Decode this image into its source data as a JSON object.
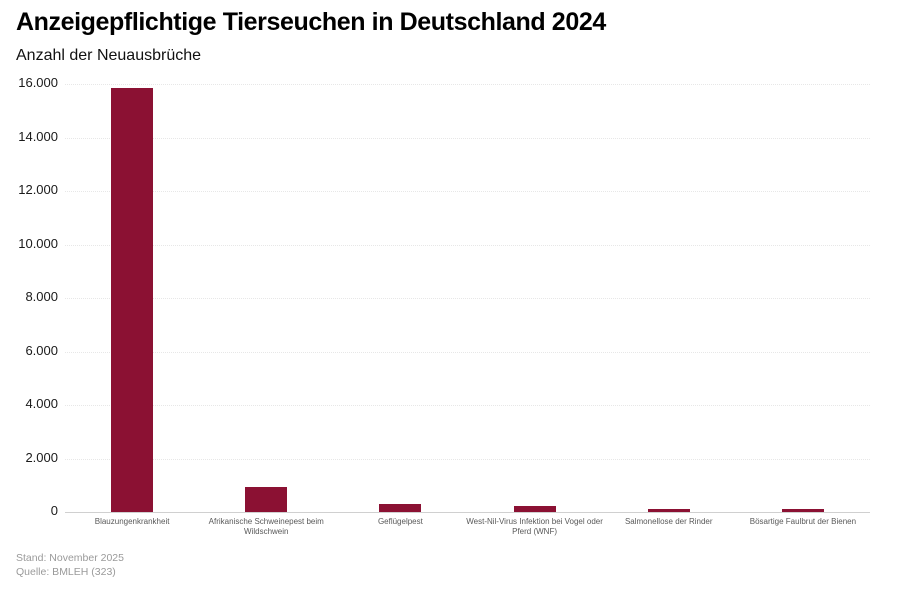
{
  "header": {
    "title": "Anzeigepflichtige Tierseuchen in Deutschland 2024",
    "subtitle": "Anzahl der Neuausbrüche"
  },
  "chart_data": {
    "type": "bar",
    "title": "Anzeigepflichtige Tierseuchen in Deutschland 2024",
    "subtitle": "Anzahl der Neuausbrüche",
    "xlabel": "",
    "ylabel": "Anzahl der Neuausbrüche",
    "categories": [
      "Blauzungenkrankheit",
      "Afrikanische Schweinepest beim Wildschwein",
      "Geflügelpest",
      "West-Nil-Virus Infektion bei Vogel oder Pferd (WNF)",
      "Salmonellose der Rinder",
      "Bösartige Faulbrut der Bienen"
    ],
    "values": [
      15850,
      950,
      290,
      220,
      130,
      120
    ],
    "ylim": [
      0,
      16000
    ],
    "y_ticks": [
      {
        "value": 16000,
        "label": "16.000"
      },
      {
        "value": 14000,
        "label": "14.000"
      },
      {
        "value": 12000,
        "label": "12.000"
      },
      {
        "value": 10000,
        "label": "10.000"
      },
      {
        "value": 8000,
        "label": "8.000"
      },
      {
        "value": 6000,
        "label": "6.000"
      },
      {
        "value": 4000,
        "label": "4.000"
      },
      {
        "value": 2000,
        "label": "2.000"
      },
      {
        "value": 0,
        "label": "0"
      }
    ],
    "grid": "horizontal-dotted",
    "legend": "none"
  },
  "footer": {
    "stand": "Stand: November 2025",
    "quelle": "Quelle: BMLEH (323)"
  },
  "colors": {
    "bar": "#8B1133",
    "gridline": "#e7e7e7",
    "axis_line": "#d0d0d0",
    "x_label": "#595959",
    "y_tick_label": "#1a1a1a",
    "footer_text": "#9a9a9a",
    "background": "#ffffff"
  }
}
